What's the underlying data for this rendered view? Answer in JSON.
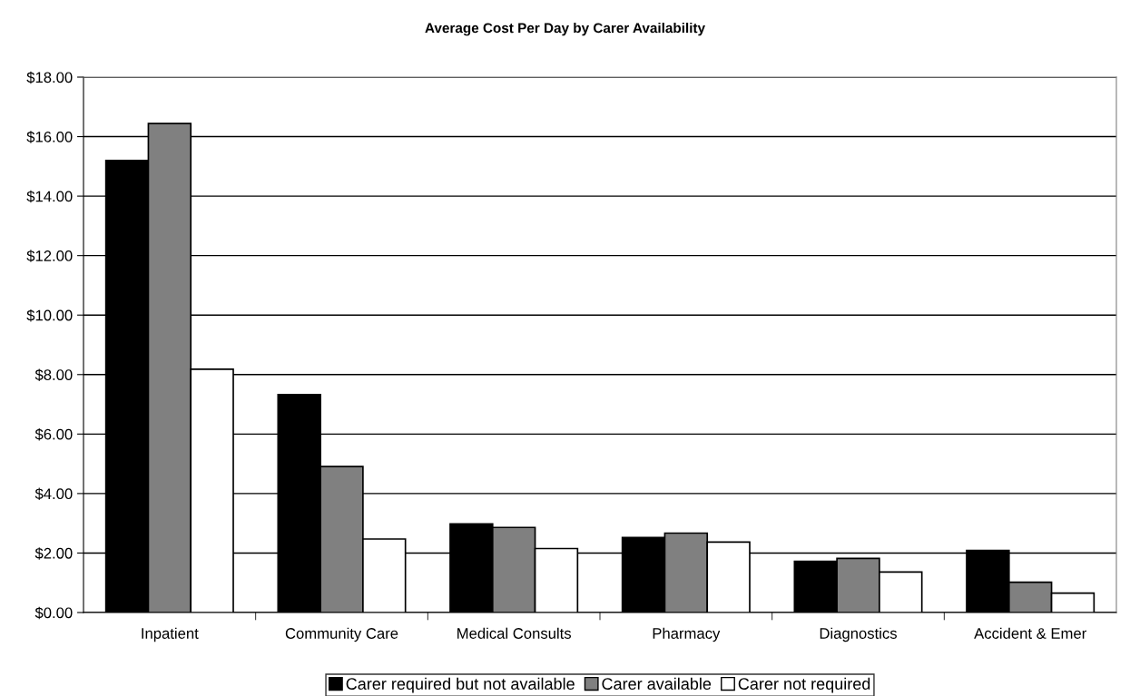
{
  "chart_data": {
    "type": "bar",
    "title": "Average Cost Per Day by Carer Availability",
    "categories": [
      "Inpatient",
      "Community Care",
      "Medical Consults",
      "Pharmacy",
      "Diagnostics",
      "Accident & Emer"
    ],
    "series": [
      {
        "name": "Carer required but not available",
        "color": "#000000",
        "values": [
          15.2,
          7.33,
          2.98,
          2.52,
          1.72,
          2.09
        ]
      },
      {
        "name": "Carer available",
        "color": "#808080",
        "values": [
          16.44,
          4.91,
          2.86,
          2.67,
          1.82,
          1.02
        ]
      },
      {
        "name": "Carer not required",
        "color": "#ffffff",
        "values": [
          8.18,
          2.47,
          2.15,
          2.37,
          1.36,
          0.65
        ]
      }
    ],
    "ylim": [
      0,
      18
    ],
    "yticks": [
      {
        "value": 0,
        "label": "$0.00"
      },
      {
        "value": 2,
        "label": "$2.00"
      },
      {
        "value": 4,
        "label": "$4.00"
      },
      {
        "value": 6,
        "label": "$6.00"
      },
      {
        "value": 8,
        "label": "$8.00"
      },
      {
        "value": 10,
        "label": "$10.00"
      },
      {
        "value": 12,
        "label": "$12.00"
      },
      {
        "value": 14,
        "label": "$14.00"
      },
      {
        "value": 16,
        "label": "$16.00"
      },
      {
        "value": 18,
        "label": "$18.00"
      }
    ],
    "grid": "y",
    "legend": "bottom"
  }
}
